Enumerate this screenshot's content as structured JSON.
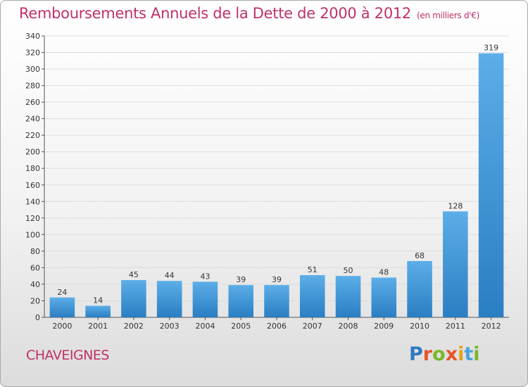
{
  "title": "Remboursements Annuels de la Dette de 2000 à 2012",
  "subtitle": "(en milliers d'€)",
  "place": "CHAVEIGNES",
  "brand": {
    "letters": [
      "P",
      "r",
      "o",
      "x",
      "i",
      "t",
      "i"
    ],
    "colors": [
      "#2f78c4",
      "#e8552a",
      "#79b829",
      "#e8552a",
      "#e3a21c",
      "#4aa3df",
      "#79b829"
    ]
  },
  "colors": {
    "bar_light": "#5caee8",
    "bar_dark": "#2a7ec2",
    "title": "#c0306a",
    "grid": "#dddddd"
  },
  "chart_data": {
    "type": "bar",
    "categories": [
      "2000",
      "2001",
      "2002",
      "2003",
      "2004",
      "2005",
      "2006",
      "2007",
      "2008",
      "2009",
      "2010",
      "2011",
      "2012"
    ],
    "values": [
      24,
      14,
      45,
      44,
      43,
      39,
      39,
      51,
      50,
      48,
      68,
      128,
      319
    ],
    "data_labels": [
      "24",
      "14",
      "45",
      "44",
      "43",
      "39",
      "39",
      "51",
      "50",
      "48",
      "68",
      "128",
      "319"
    ],
    "yticks": [
      "0",
      "20",
      "40",
      "60",
      "80",
      "100",
      "120",
      "140",
      "160",
      "180",
      "200",
      "220",
      "240",
      "260",
      "280",
      "300",
      "320",
      "340"
    ],
    "ylim": [
      0,
      340
    ],
    "grid": true,
    "legend": "none"
  }
}
